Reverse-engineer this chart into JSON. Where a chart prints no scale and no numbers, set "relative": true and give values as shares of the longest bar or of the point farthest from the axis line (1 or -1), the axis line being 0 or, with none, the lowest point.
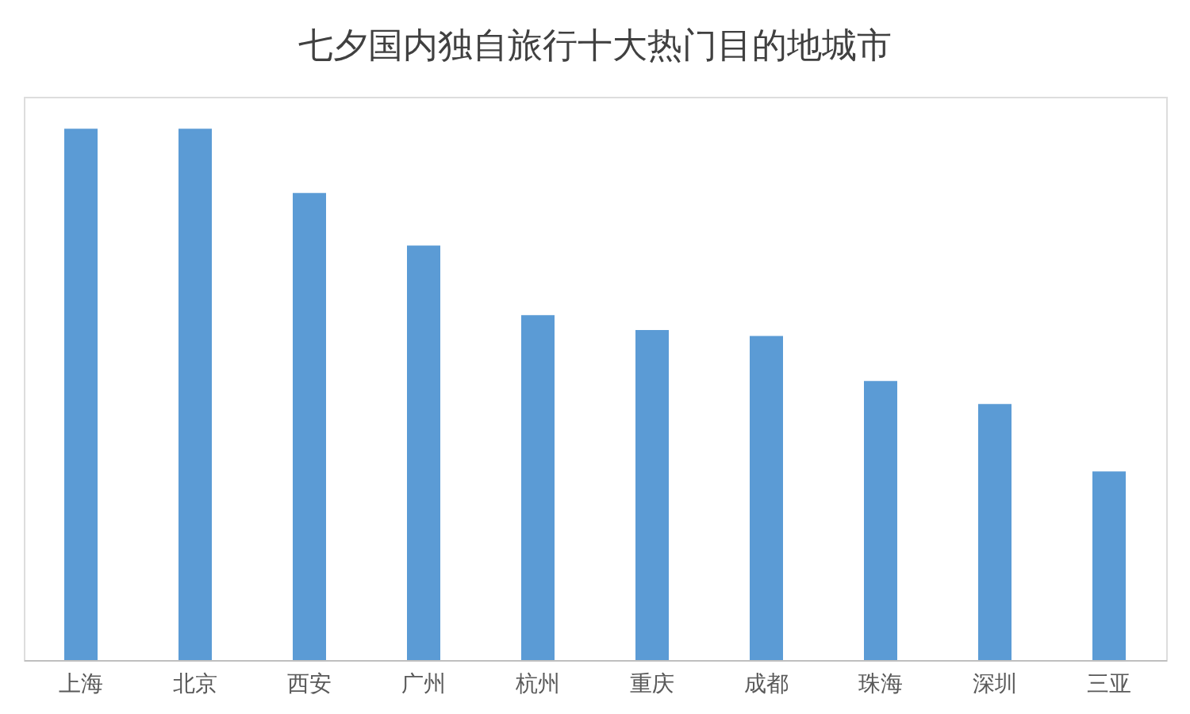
{
  "chart_data": {
    "type": "bar",
    "title": "七夕国内独自旅行十大热门目的地城市",
    "relative": true,
    "categories": [
      "上海",
      "北京",
      "西安",
      "广州",
      "杭州",
      "重庆",
      "成都",
      "珠海",
      "深圳",
      "三亚"
    ],
    "values": [
      1,
      1,
      0.879,
      0.78,
      0.649,
      0.621,
      0.61,
      0.525,
      0.482,
      0.355
    ],
    "color": "#5b9bd5",
    "grid": false
  }
}
